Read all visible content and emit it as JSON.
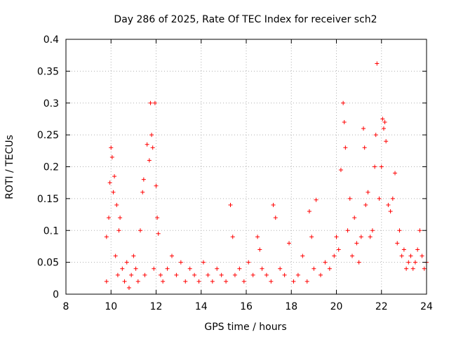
{
  "chart_data": {
    "type": "scatter",
    "title": "Day 286 of 2025, Rate Of TEC Index for receiver sch2",
    "xlabel": "GPS time / hours",
    "ylabel": "ROTI / TECUs",
    "xlim": [
      8,
      24
    ],
    "ylim": [
      0,
      0.4
    ],
    "xticks": [
      8,
      10,
      12,
      14,
      16,
      18,
      20,
      22,
      24
    ],
    "xtick_labels": [
      "8",
      "10",
      "12",
      "14",
      "16",
      "18",
      "20",
      "22",
      "24"
    ],
    "yticks": [
      0,
      0.05,
      0.1,
      0.15,
      0.2,
      0.25,
      0.3,
      0.35,
      0.4
    ],
    "ytick_labels": [
      "0",
      "0.05",
      "0.1",
      "0.15",
      "0.2",
      "0.25",
      "0.3",
      "0.35",
      "0.4"
    ],
    "grid": true,
    "marker": "+",
    "marker_color": "#ff0000",
    "series": [
      {
        "name": "ROTI",
        "x": [
          9.8,
          9.8,
          9.9,
          9.95,
          10.0,
          10.05,
          10.1,
          10.15,
          10.2,
          10.25,
          10.3,
          10.35,
          10.4,
          10.5,
          10.6,
          10.7,
          10.8,
          10.9,
          11.0,
          11.1,
          11.2,
          11.3,
          11.4,
          11.45,
          11.5,
          11.6,
          11.7,
          11.75,
          11.8,
          11.85,
          11.9,
          11.95,
          12.0,
          12.05,
          12.1,
          12.2,
          12.3,
          12.5,
          12.7,
          12.9,
          13.1,
          13.3,
          13.5,
          13.7,
          13.9,
          14.1,
          14.3,
          14.5,
          14.7,
          14.9,
          15.1,
          15.3,
          15.4,
          15.5,
          15.7,
          15.9,
          16.1,
          16.3,
          16.5,
          16.6,
          16.7,
          16.9,
          17.1,
          17.2,
          17.3,
          17.5,
          17.7,
          17.9,
          18.1,
          18.3,
          18.5,
          18.7,
          18.8,
          18.9,
          19.0,
          19.1,
          19.3,
          19.5,
          19.7,
          19.9,
          20.0,
          20.1,
          20.2,
          20.3,
          20.35,
          20.4,
          20.5,
          20.6,
          20.7,
          20.8,
          20.9,
          21.0,
          21.1,
          21.2,
          21.25,
          21.3,
          21.4,
          21.5,
          21.6,
          21.7,
          21.75,
          21.8,
          21.9,
          22.0,
          22.05,
          22.1,
          22.15,
          22.2,
          22.3,
          22.4,
          22.5,
          22.6,
          22.7,
          22.8,
          22.9,
          23.0,
          23.1,
          23.2,
          23.3,
          23.4,
          23.5,
          23.6,
          23.7,
          23.8,
          23.9,
          24.0
        ],
        "y": [
          0.09,
          0.02,
          0.12,
          0.175,
          0.23,
          0.215,
          0.16,
          0.185,
          0.06,
          0.14,
          0.03,
          0.1,
          0.12,
          0.04,
          0.02,
          0.05,
          0.01,
          0.03,
          0.06,
          0.04,
          0.02,
          0.1,
          0.16,
          0.18,
          0.03,
          0.235,
          0.21,
          0.3,
          0.25,
          0.23,
          0.04,
          0.3,
          0.17,
          0.12,
          0.095,
          0.03,
          0.02,
          0.04,
          0.06,
          0.03,
          0.05,
          0.02,
          0.04,
          0.03,
          0.02,
          0.05,
          0.03,
          0.02,
          0.04,
          0.03,
          0.02,
          0.14,
          0.09,
          0.03,
          0.04,
          0.02,
          0.05,
          0.03,
          0.09,
          0.07,
          0.04,
          0.03,
          0.02,
          0.14,
          0.12,
          0.04,
          0.03,
          0.08,
          0.02,
          0.03,
          0.06,
          0.02,
          0.13,
          0.09,
          0.04,
          0.148,
          0.03,
          0.05,
          0.04,
          0.06,
          0.09,
          0.07,
          0.195,
          0.3,
          0.27,
          0.23,
          0.1,
          0.15,
          0.06,
          0.12,
          0.08,
          0.05,
          0.09,
          0.26,
          0.23,
          0.14,
          0.16,
          0.09,
          0.1,
          0.2,
          0.25,
          0.362,
          0.15,
          0.2,
          0.275,
          0.26,
          0.27,
          0.24,
          0.14,
          0.13,
          0.15,
          0.19,
          0.08,
          0.1,
          0.06,
          0.07,
          0.04,
          0.05,
          0.06,
          0.04,
          0.05,
          0.07,
          0.1,
          0.06,
          0.04,
          0.05
        ]
      }
    ]
  }
}
